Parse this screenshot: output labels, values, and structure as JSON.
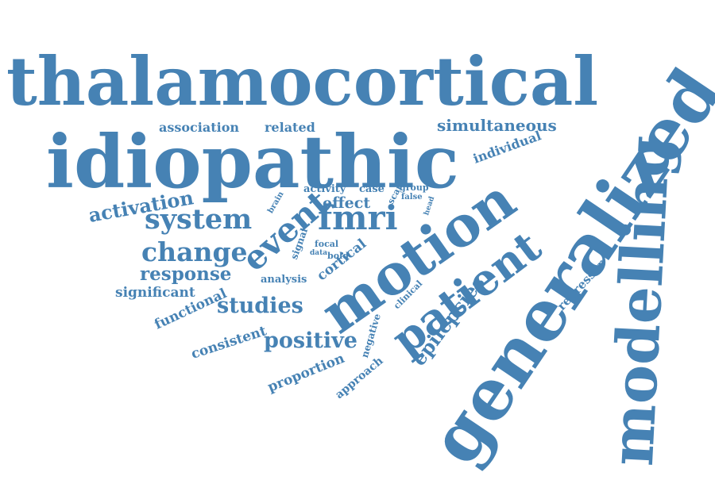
{
  "accent_color": "#4682b4",
  "words": [
    "thalamocortical",
    "idiopathic",
    "generalized",
    "modelling",
    "motion",
    "patient",
    "fmri",
    "event",
    "system",
    "change",
    "activation",
    "association",
    "related",
    "simultaneous",
    "individual",
    "response",
    "studies",
    "positive",
    "epilepsies",
    "significant",
    "functional",
    "consistent",
    "proportion",
    "approach",
    "negative",
    "regressor",
    "clinical",
    "cortical",
    "analysis",
    "signal",
    "effect",
    "activity",
    "case",
    "group",
    "brain",
    "scan",
    "false",
    "head",
    "focal",
    "bold",
    "data"
  ]
}
